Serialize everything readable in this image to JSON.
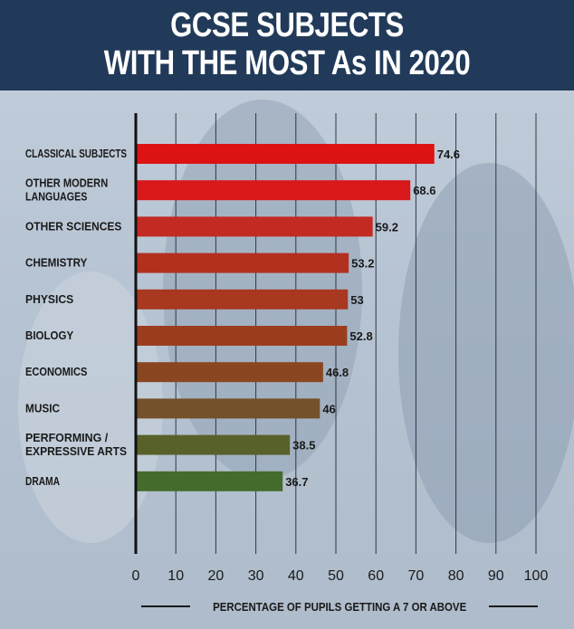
{
  "header": {
    "title_line1": "GCSE SUBJECTS",
    "title_line2": "WITH THE MOST As IN 2020"
  },
  "colors": {
    "header_bg": "#213a59",
    "bar_top": "#e01010",
    "bar_bottom": "#3f6b28"
  },
  "chart_data": {
    "type": "bar",
    "orientation": "horizontal",
    "title": "GCSE SUBJECTS WITH THE MOST As IN 2020",
    "xlabel": "PERCENTAGE OF PUPILS GETTING A 7 OR ABOVE",
    "ylabel": "",
    "xlim": [
      0,
      100
    ],
    "xticks": [
      "0",
      "10",
      "20",
      "30",
      "40",
      "50",
      "60",
      "70",
      "80",
      "90",
      "100"
    ],
    "grid": "vertical",
    "categories": [
      [
        "CLASSICAL SUBJECTS"
      ],
      [
        "OTHER MODERN",
        "LANGUAGES"
      ],
      [
        "OTHER SCIENCES"
      ],
      [
        "CHEMISTRY"
      ],
      [
        "PHYSICS"
      ],
      [
        "BIOLOGY"
      ],
      [
        "ECONOMICS"
      ],
      [
        "MUSIC"
      ],
      [
        "PERFORMING /",
        "EXPRESSIVE ARTS"
      ],
      [
        "DRAMA"
      ]
    ],
    "values": [
      74.6,
      68.6,
      59.2,
      53.2,
      53,
      52.8,
      46.8,
      46,
      38.5,
      36.7
    ],
    "value_labels": [
      "74.6",
      "68.6",
      "59.2",
      "53.2",
      "53",
      "52.8",
      "46.8",
      "46",
      "38.5",
      "36.7"
    ],
    "bar_colors": [
      "#dd1212",
      "#d8181a",
      "#c22a22",
      "#b3301f",
      "#a8381f",
      "#9b3e20",
      "#8a4620",
      "#74512a",
      "#586129",
      "#456b2c"
    ]
  }
}
